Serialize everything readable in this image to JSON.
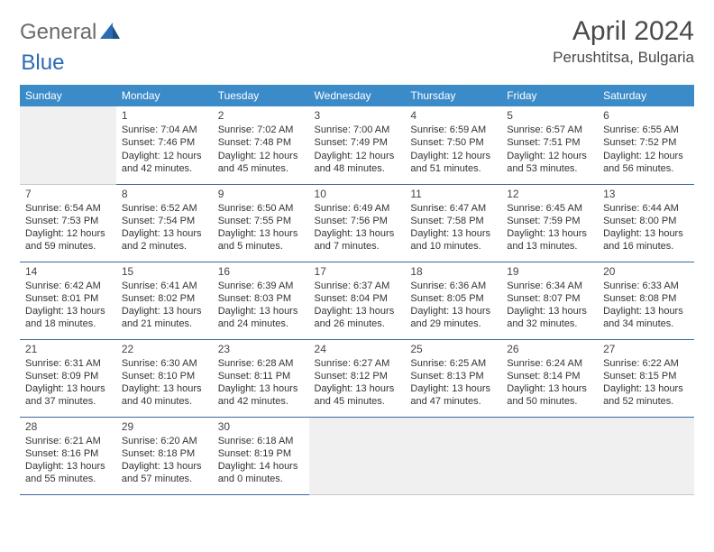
{
  "logo": {
    "part1": "General",
    "part2": "Blue"
  },
  "title": "April 2024",
  "location": "Perushtitsa, Bulgaria",
  "colors": {
    "header_bg": "#3b8bc9",
    "header_text": "#ffffff",
    "cell_border": "#3a6a99",
    "empty_bg": "#f0f0f0",
    "logo_gray": "#6b6b6b",
    "logo_blue": "#2a6bb3",
    "title_color": "#4a4a4a"
  },
  "day_names": [
    "Sunday",
    "Monday",
    "Tuesday",
    "Wednesday",
    "Thursday",
    "Friday",
    "Saturday"
  ],
  "weeks": [
    [
      null,
      {
        "n": "1",
        "sr": "7:04 AM",
        "ss": "7:46 PM",
        "dl": "12 hours and 42 minutes."
      },
      {
        "n": "2",
        "sr": "7:02 AM",
        "ss": "7:48 PM",
        "dl": "12 hours and 45 minutes."
      },
      {
        "n": "3",
        "sr": "7:00 AM",
        "ss": "7:49 PM",
        "dl": "12 hours and 48 minutes."
      },
      {
        "n": "4",
        "sr": "6:59 AM",
        "ss": "7:50 PM",
        "dl": "12 hours and 51 minutes."
      },
      {
        "n": "5",
        "sr": "6:57 AM",
        "ss": "7:51 PM",
        "dl": "12 hours and 53 minutes."
      },
      {
        "n": "6",
        "sr": "6:55 AM",
        "ss": "7:52 PM",
        "dl": "12 hours and 56 minutes."
      }
    ],
    [
      {
        "n": "7",
        "sr": "6:54 AM",
        "ss": "7:53 PM",
        "dl": "12 hours and 59 minutes."
      },
      {
        "n": "8",
        "sr": "6:52 AM",
        "ss": "7:54 PM",
        "dl": "13 hours and 2 minutes."
      },
      {
        "n": "9",
        "sr": "6:50 AM",
        "ss": "7:55 PM",
        "dl": "13 hours and 5 minutes."
      },
      {
        "n": "10",
        "sr": "6:49 AM",
        "ss": "7:56 PM",
        "dl": "13 hours and 7 minutes."
      },
      {
        "n": "11",
        "sr": "6:47 AM",
        "ss": "7:58 PM",
        "dl": "13 hours and 10 minutes."
      },
      {
        "n": "12",
        "sr": "6:45 AM",
        "ss": "7:59 PM",
        "dl": "13 hours and 13 minutes."
      },
      {
        "n": "13",
        "sr": "6:44 AM",
        "ss": "8:00 PM",
        "dl": "13 hours and 16 minutes."
      }
    ],
    [
      {
        "n": "14",
        "sr": "6:42 AM",
        "ss": "8:01 PM",
        "dl": "13 hours and 18 minutes."
      },
      {
        "n": "15",
        "sr": "6:41 AM",
        "ss": "8:02 PM",
        "dl": "13 hours and 21 minutes."
      },
      {
        "n": "16",
        "sr": "6:39 AM",
        "ss": "8:03 PM",
        "dl": "13 hours and 24 minutes."
      },
      {
        "n": "17",
        "sr": "6:37 AM",
        "ss": "8:04 PM",
        "dl": "13 hours and 26 minutes."
      },
      {
        "n": "18",
        "sr": "6:36 AM",
        "ss": "8:05 PM",
        "dl": "13 hours and 29 minutes."
      },
      {
        "n": "19",
        "sr": "6:34 AM",
        "ss": "8:07 PM",
        "dl": "13 hours and 32 minutes."
      },
      {
        "n": "20",
        "sr": "6:33 AM",
        "ss": "8:08 PM",
        "dl": "13 hours and 34 minutes."
      }
    ],
    [
      {
        "n": "21",
        "sr": "6:31 AM",
        "ss": "8:09 PM",
        "dl": "13 hours and 37 minutes."
      },
      {
        "n": "22",
        "sr": "6:30 AM",
        "ss": "8:10 PM",
        "dl": "13 hours and 40 minutes."
      },
      {
        "n": "23",
        "sr": "6:28 AM",
        "ss": "8:11 PM",
        "dl": "13 hours and 42 minutes."
      },
      {
        "n": "24",
        "sr": "6:27 AM",
        "ss": "8:12 PM",
        "dl": "13 hours and 45 minutes."
      },
      {
        "n": "25",
        "sr": "6:25 AM",
        "ss": "8:13 PM",
        "dl": "13 hours and 47 minutes."
      },
      {
        "n": "26",
        "sr": "6:24 AM",
        "ss": "8:14 PM",
        "dl": "13 hours and 50 minutes."
      },
      {
        "n": "27",
        "sr": "6:22 AM",
        "ss": "8:15 PM",
        "dl": "13 hours and 52 minutes."
      }
    ],
    [
      {
        "n": "28",
        "sr": "6:21 AM",
        "ss": "8:16 PM",
        "dl": "13 hours and 55 minutes."
      },
      {
        "n": "29",
        "sr": "6:20 AM",
        "ss": "8:18 PM",
        "dl": "13 hours and 57 minutes."
      },
      {
        "n": "30",
        "sr": "6:18 AM",
        "ss": "8:19 PM",
        "dl": "14 hours and 0 minutes."
      },
      null,
      null,
      null,
      null
    ]
  ],
  "labels": {
    "sunrise": "Sunrise:",
    "sunset": "Sunset:",
    "daylight": "Daylight:"
  }
}
